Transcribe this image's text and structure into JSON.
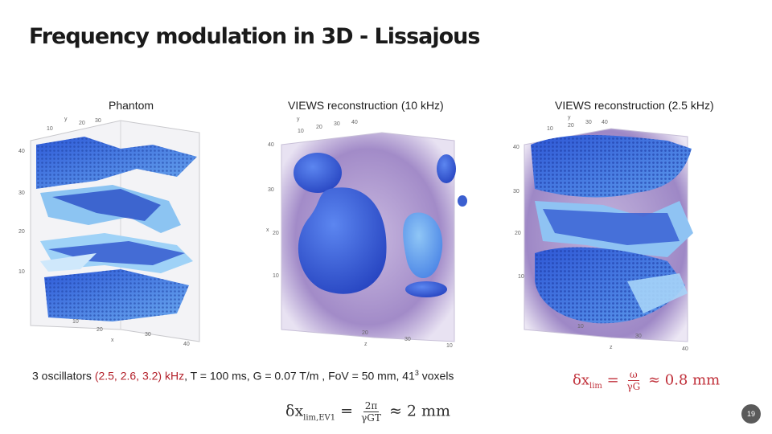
{
  "slide": {
    "title": "Frequency modulation in 3D - Lissajous",
    "panels": [
      {
        "label": "Phantom",
        "y_axis": "y",
        "x_axis": "x",
        "ticks_a": [
          "10",
          "20",
          "30",
          "40"
        ],
        "ticks_b": [
          "40",
          "30",
          "20",
          "10"
        ]
      },
      {
        "label": "VIEWS reconstruction (10 kHz)",
        "y_axis": "y",
        "x_axis": "x",
        "z_axis": "z",
        "ticks_a": [
          "10",
          "20",
          "30",
          "40"
        ],
        "ticks_b": [
          "40",
          "30",
          "20",
          "10"
        ]
      },
      {
        "label": "VIEWS reconstruction (2.5 kHz)",
        "y_axis": "y",
        "z_axis": "z",
        "ticks_a": [
          "10",
          "20",
          "30",
          "40"
        ],
        "ticks_b": [
          "40",
          "30",
          "20",
          "10"
        ]
      }
    ],
    "caption_prefix": "3 oscillators ",
    "caption_highlight": "(2.5, 2.6, 3.2) kHz",
    "caption_middle": ", T = 100 ms, G = 0.07 T/m , FoV = 50 mm, 41",
    "caption_exp": "3",
    "caption_suffix": " voxels",
    "formula_lim_lhs": "δx",
    "formula_lim_sub": "lim",
    "formula_lim_num": "ω",
    "formula_lim_den": "γG",
    "formula_lim_rhs": "≈ 0.8 mm",
    "formula_ev1_lhs": "δx",
    "formula_ev1_sub": "lim,EV1",
    "formula_ev1_num": "2π",
    "formula_ev1_den": "γGT",
    "formula_ev1_rhs": "≈ 2 mm",
    "page_number": "19",
    "colors": {
      "accent_red": "#b3202a",
      "blob_blue": "#3a5fd6",
      "light_blue": "#9ad0f5",
      "purple_haze": "#8a72b8"
    }
  }
}
